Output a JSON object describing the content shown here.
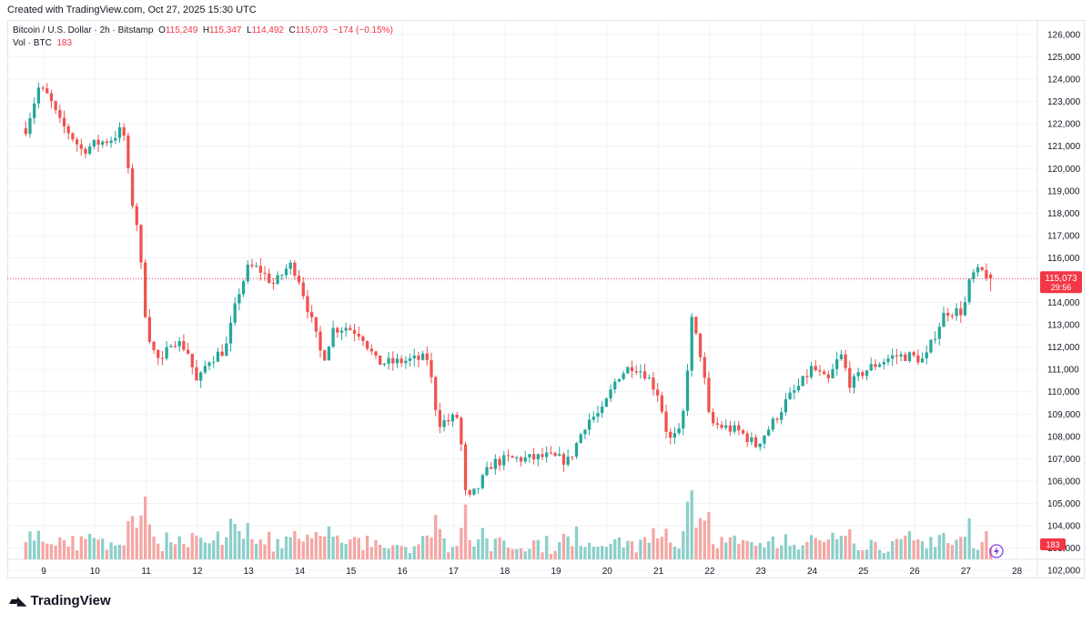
{
  "credit": "Created with TradingView.com, Oct 27, 2025 15:30 UTC",
  "legend": {
    "symbol": "Bitcoin / U.S. Dollar · 2h · Bitstamp",
    "o_label": "O",
    "o": "115,249",
    "h_label": "H",
    "h": "115,347",
    "l_label": "L",
    "l": "114,492",
    "c_label": "C",
    "c": "115,073",
    "change": "−174 (−0.15%)",
    "vol_label": "Vol · BTC",
    "vol_value": "183"
  },
  "price_tag": {
    "price": "115,073",
    "countdown": "29:56"
  },
  "volume_tag": "183",
  "brand": "TradingView",
  "colors": {
    "up": "#26a69a",
    "down": "#ef5350",
    "vol_up": "#8ccfc9",
    "vol_down": "#f5a6a3",
    "tag": "#f23645"
  },
  "chart_data": {
    "type": "candlestick",
    "symbol": "Bitcoin / U.S. Dollar",
    "interval": "2h",
    "exchange": "Bitstamp",
    "y_ticks": [
      102000,
      103000,
      104000,
      105000,
      106000,
      107000,
      108000,
      109000,
      110000,
      111000,
      112000,
      113000,
      114000,
      115000,
      116000,
      117000,
      118000,
      119000,
      120000,
      121000,
      122000,
      123000,
      124000,
      125000,
      126000
    ],
    "x_ticks": [
      "9",
      "10",
      "11",
      "12",
      "13",
      "14",
      "15",
      "16",
      "17",
      "18",
      "19",
      "20",
      "21",
      "22",
      "23",
      "24",
      "25",
      "26",
      "27",
      "28"
    ],
    "ylim": [
      101500,
      126500
    ],
    "last_price": 115073,
    "segments": [
      {
        "day": 8.65,
        "price": 121800
      },
      {
        "day": 8.9,
        "price": 123600
      },
      {
        "day": 9.1,
        "price": 123200
      },
      {
        "day": 9.3,
        "price": 122100
      },
      {
        "day": 9.5,
        "price": 121600
      },
      {
        "day": 9.75,
        "price": 120800
      },
      {
        "day": 10.0,
        "price": 121100
      },
      {
        "day": 10.3,
        "price": 121300
      },
      {
        "day": 10.55,
        "price": 121800
      },
      {
        "day": 10.7,
        "price": 118800
      },
      {
        "day": 10.85,
        "price": 117200
      },
      {
        "day": 10.95,
        "price": 114000
      },
      {
        "day": 11.1,
        "price": 112000
      },
      {
        "day": 11.3,
        "price": 111200
      },
      {
        "day": 11.5,
        "price": 112400
      },
      {
        "day": 11.8,
        "price": 111900
      },
      {
        "day": 12.0,
        "price": 110300
      },
      {
        "day": 12.2,
        "price": 111400
      },
      {
        "day": 12.55,
        "price": 111900
      },
      {
        "day": 12.8,
        "price": 114400
      },
      {
        "day": 13.0,
        "price": 115600
      },
      {
        "day": 13.2,
        "price": 115500
      },
      {
        "day": 13.5,
        "price": 114800
      },
      {
        "day": 13.8,
        "price": 115700
      },
      {
        "day": 13.95,
        "price": 115300
      },
      {
        "day": 14.2,
        "price": 113400
      },
      {
        "day": 14.45,
        "price": 111400
      },
      {
        "day": 14.65,
        "price": 112800
      },
      {
        "day": 14.9,
        "price": 112900
      },
      {
        "day": 15.2,
        "price": 112600
      },
      {
        "day": 15.5,
        "price": 111300
      },
      {
        "day": 15.8,
        "price": 111300
      },
      {
        "day": 16.1,
        "price": 111400
      },
      {
        "day": 16.5,
        "price": 111500
      },
      {
        "day": 16.7,
        "price": 108600
      },
      {
        "day": 16.9,
        "price": 108700
      },
      {
        "day": 17.1,
        "price": 108900
      },
      {
        "day": 17.25,
        "price": 105000
      },
      {
        "day": 17.45,
        "price": 105600
      },
      {
        "day": 17.75,
        "price": 106800
      },
      {
        "day": 18.1,
        "price": 107000
      },
      {
        "day": 18.5,
        "price": 107000
      },
      {
        "day": 18.8,
        "price": 107100
      },
      {
        "day": 19.25,
        "price": 106900
      },
      {
        "day": 19.6,
        "price": 108700
      },
      {
        "day": 19.9,
        "price": 109100
      },
      {
        "day": 20.2,
        "price": 110700
      },
      {
        "day": 20.5,
        "price": 111200
      },
      {
        "day": 20.75,
        "price": 110800
      },
      {
        "day": 21.0,
        "price": 109900
      },
      {
        "day": 21.2,
        "price": 107800
      },
      {
        "day": 21.45,
        "price": 108200
      },
      {
        "day": 21.65,
        "price": 113200
      },
      {
        "day": 21.85,
        "price": 111400
      },
      {
        "day": 22.0,
        "price": 108600
      },
      {
        "day": 22.3,
        "price": 108400
      },
      {
        "day": 22.6,
        "price": 108200
      },
      {
        "day": 22.9,
        "price": 107600
      },
      {
        "day": 23.2,
        "price": 108500
      },
      {
        "day": 23.5,
        "price": 109600
      },
      {
        "day": 23.8,
        "price": 110400
      },
      {
        "day": 24.0,
        "price": 111100
      },
      {
        "day": 24.3,
        "price": 110400
      },
      {
        "day": 24.55,
        "price": 111700
      },
      {
        "day": 24.75,
        "price": 110300
      },
      {
        "day": 25.0,
        "price": 110900
      },
      {
        "day": 25.3,
        "price": 111300
      },
      {
        "day": 25.6,
        "price": 111600
      },
      {
        "day": 25.9,
        "price": 111600
      },
      {
        "day": 26.2,
        "price": 111400
      },
      {
        "day": 26.4,
        "price": 112600
      },
      {
        "day": 26.6,
        "price": 113600
      },
      {
        "day": 26.95,
        "price": 113600
      },
      {
        "day": 27.1,
        "price": 115200
      },
      {
        "day": 27.3,
        "price": 115400
      },
      {
        "day": 27.5,
        "price": 115073
      }
    ]
  }
}
